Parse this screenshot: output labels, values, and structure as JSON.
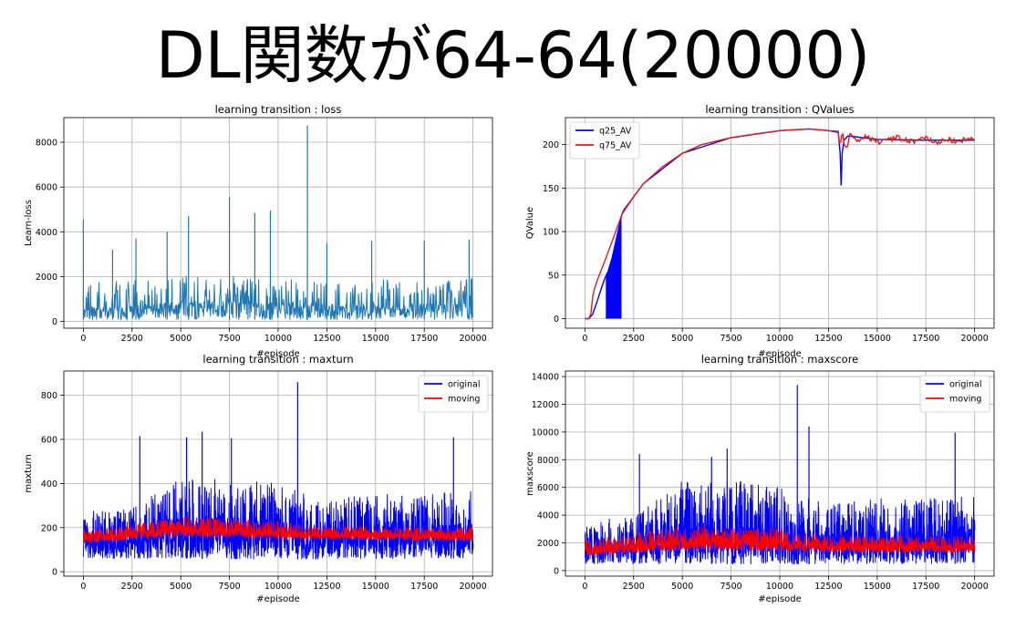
{
  "slide": {
    "title": "DL関数が64-64(20000)"
  },
  "chart_data": [
    {
      "id": "loss",
      "type": "line",
      "title": "learning transition : loss",
      "xlabel": "#episode",
      "ylabel": "Learn-loss",
      "xlim": [
        -1000,
        21000
      ],
      "ylim": [
        -300,
        9100
      ],
      "xticks": [
        0,
        2500,
        5000,
        7500,
        10000,
        12500,
        15000,
        17500,
        20000
      ],
      "yticks": [
        0,
        2000,
        4000,
        6000,
        8000
      ],
      "grid": true,
      "legend": null,
      "series": [
        {
          "color": "#1f77b4",
          "style": "noisy",
          "floor": 80,
          "base": [
            [
              0,
              900
            ],
            [
              3000,
              1200
            ],
            [
              5000,
              1450
            ],
            [
              7500,
              1450
            ],
            [
              10000,
              1350
            ],
            [
              12500,
              1250
            ],
            [
              15000,
              1150
            ],
            [
              17500,
              1250
            ],
            [
              20000,
              1250
            ]
          ],
          "spread": 1300,
          "spikes": [
            [
              0,
              4550
            ],
            [
              1500,
              3200
            ],
            [
              2700,
              3700
            ],
            [
              4300,
              4000
            ],
            [
              5400,
              4700
            ],
            [
              7500,
              5550
            ],
            [
              8800,
              4850
            ],
            [
              9600,
              4950
            ],
            [
              11500,
              8750
            ],
            [
              12500,
              3500
            ],
            [
              14800,
              3600
            ],
            [
              17500,
              3600
            ],
            [
              19800,
              3650
            ]
          ]
        }
      ]
    },
    {
      "id": "qvalues",
      "type": "line",
      "title": "learning transition : QValues",
      "xlabel": "#episode",
      "ylabel": "QValue",
      "xlim": [
        -1000,
        21000
      ],
      "ylim": [
        -11,
        231
      ],
      "xticks": [
        0,
        2500,
        5000,
        7500,
        10000,
        12500,
        15000,
        17500,
        20000
      ],
      "yticks": [
        0,
        50,
        100,
        150,
        200
      ],
      "grid": true,
      "legend": "top-left",
      "series": [
        {
          "name": "q25_AV",
          "color": "#0000ff",
          "points": [
            [
              0,
              0
            ],
            [
              200,
              0
            ],
            [
              400,
              5
            ],
            [
              600,
              18
            ],
            [
              800,
              32
            ],
            [
              1000,
              45
            ],
            [
              1200,
              55
            ],
            [
              1400,
              70
            ],
            [
              1600,
              90
            ],
            [
              1800,
              110
            ],
            [
              1900,
              120
            ],
            [
              2000,
              125
            ],
            [
              3000,
              155
            ],
            [
              5000,
              190
            ],
            [
              7500,
              208
            ],
            [
              10000,
              216
            ],
            [
              11500,
              218
            ],
            [
              12500,
              216
            ],
            [
              13000,
              214
            ],
            [
              13100,
              190
            ],
            [
              13150,
              153
            ],
            [
              13200,
              190
            ],
            [
              13300,
              205
            ],
            [
              13500,
              210
            ],
            [
              15000,
              206
            ],
            [
              17500,
              205
            ],
            [
              20000,
              205
            ]
          ],
          "fill": [
            [
              1100,
              1850
            ]
          ]
        },
        {
          "name": "q75_AV",
          "color": "#e41a1c",
          "points": [
            [
              0,
              0
            ],
            [
              200,
              0
            ],
            [
              300,
              5
            ],
            [
              400,
              25
            ],
            [
              500,
              35
            ],
            [
              700,
              48
            ],
            [
              1000,
              65
            ],
            [
              1500,
              95
            ],
            [
              1900,
              120
            ],
            [
              2500,
              140
            ],
            [
              3000,
              155
            ],
            [
              4000,
              175
            ],
            [
              5000,
              190
            ],
            [
              6000,
              200
            ],
            [
              7500,
              208
            ],
            [
              9000,
              213
            ],
            [
              10000,
              216
            ],
            [
              11500,
              218
            ],
            [
              12500,
              216
            ],
            [
              13000,
              213
            ],
            [
              13100,
              200
            ],
            [
              13200,
              213
            ],
            [
              13400,
              193
            ],
            [
              13600,
              210
            ],
            [
              14000,
              205
            ],
            [
              14500,
              209
            ],
            [
              15000,
              203
            ],
            [
              16000,
              208
            ],
            [
              17000,
              203
            ],
            [
              17500,
              208
            ],
            [
              18000,
              202
            ],
            [
              18500,
              206
            ],
            [
              19000,
              204
            ],
            [
              19500,
              206
            ],
            [
              20000,
              205
            ]
          ],
          "noise_from": 13000
        }
      ]
    },
    {
      "id": "maxturn",
      "type": "line",
      "title": "learning transition : maxturn",
      "xlabel": "#episode",
      "ylabel": "maxturn",
      "xlim": [
        -1000,
        21000
      ],
      "ylim": [
        -20,
        910
      ],
      "xticks": [
        0,
        2500,
        5000,
        7500,
        10000,
        12500,
        15000,
        17500,
        20000
      ],
      "yticks": [
        0,
        200,
        400,
        600,
        800
      ],
      "grid": true,
      "legend": "top-right",
      "series": [
        {
          "name": "original",
          "color": "#0000ff",
          "style": "noisy",
          "lower": [
            [
              0,
              60
            ],
            [
              5000,
              60
            ],
            [
              10000,
              55
            ],
            [
              15000,
              60
            ],
            [
              20000,
              60
            ]
          ],
          "upper": [
            [
              0,
              270
            ],
            [
              2500,
              290
            ],
            [
              5000,
              430
            ],
            [
              7500,
              420
            ],
            [
              10000,
              400
            ],
            [
              12500,
              330
            ],
            [
              15000,
              350
            ],
            [
              17500,
              360
            ],
            [
              20000,
              370
            ]
          ],
          "spikes": [
            [
              2900,
              615
            ],
            [
              5300,
              610
            ],
            [
              6100,
              635
            ],
            [
              7600,
              605
            ],
            [
              11000,
              860
            ],
            [
              19000,
              610
            ]
          ]
        },
        {
          "name": "moving",
          "color": "#ff0000",
          "style": "noisy",
          "lower": [
            [
              0,
              130
            ],
            [
              5000,
              160
            ],
            [
              10000,
              150
            ],
            [
              15000,
              145
            ],
            [
              20000,
              140
            ]
          ],
          "upper": [
            [
              0,
              190
            ],
            [
              5000,
              250
            ],
            [
              10000,
              230
            ],
            [
              12500,
              200
            ],
            [
              15000,
              205
            ],
            [
              20000,
              200
            ]
          ]
        }
      ]
    },
    {
      "id": "maxscore",
      "type": "line",
      "title": "learning transition : maxscore",
      "xlabel": "#episode",
      "ylabel": "maxscore",
      "xlim": [
        -1000,
        21000
      ],
      "ylim": [
        -400,
        14400
      ],
      "xticks": [
        0,
        2500,
        5000,
        7500,
        10000,
        12500,
        15000,
        17500,
        20000
      ],
      "yticks": [
        0,
        2000,
        4000,
        6000,
        8000,
        10000,
        12000,
        14000
      ],
      "grid": true,
      "legend": "top-right",
      "series": [
        {
          "name": "original",
          "color": "#0000ff",
          "style": "noisy",
          "lower": [
            [
              0,
              500
            ],
            [
              5000,
              500
            ],
            [
              10000,
              450
            ],
            [
              15000,
              500
            ],
            [
              20000,
              500
            ]
          ],
          "upper": [
            [
              0,
              3500
            ],
            [
              2500,
              4000
            ],
            [
              5000,
              6500
            ],
            [
              7500,
              6500
            ],
            [
              10000,
              6000
            ],
            [
              12500,
              4800
            ],
            [
              15000,
              5200
            ],
            [
              17500,
              5200
            ],
            [
              20000,
              5500
            ]
          ],
          "spikes": [
            [
              2800,
              8400
            ],
            [
              6500,
              8200
            ],
            [
              7300,
              8800
            ],
            [
              10900,
              13400
            ],
            [
              11500,
              10400
            ],
            [
              19000,
              9950
            ]
          ]
        },
        {
          "name": "moving",
          "color": "#ff0000",
          "style": "noisy",
          "lower": [
            [
              0,
              1100
            ],
            [
              5000,
              1500
            ],
            [
              10000,
              1400
            ],
            [
              15000,
              1300
            ],
            [
              20000,
              1300
            ]
          ],
          "upper": [
            [
              0,
              2200
            ],
            [
              5000,
              3200
            ],
            [
              10000,
              3000
            ],
            [
              12500,
              2500
            ],
            [
              15000,
              2500
            ],
            [
              20000,
              2500
            ]
          ]
        }
      ]
    }
  ]
}
